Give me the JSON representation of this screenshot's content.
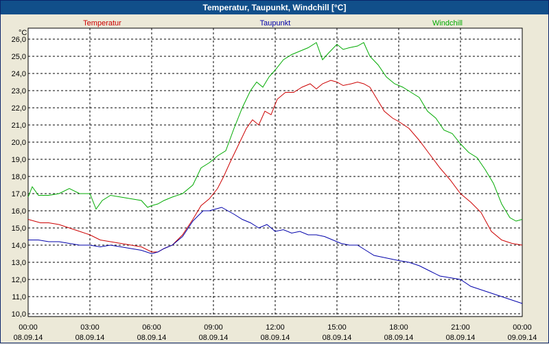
{
  "window": {
    "title": "Temperatur, Taupunkt, Windchill [°C]"
  },
  "chart_data": {
    "type": "line",
    "title": "Temperatur, Taupunkt, Windchill [°C]",
    "ylabel": "°C",
    "ylim": [
      10.0,
      26.5
    ],
    "xlim": [
      0,
      24
    ],
    "grid": true,
    "yticks": [
      "10,0",
      "11,0",
      "12,0",
      "13,0",
      "14,0",
      "15,0",
      "16,0",
      "17,0",
      "18,0",
      "19,0",
      "20,0",
      "21,0",
      "22,0",
      "23,0",
      "24,0",
      "25,0",
      "26,0"
    ],
    "xticks": [
      {
        "time": "00:00",
        "date": "08.09.14"
      },
      {
        "time": "03:00",
        "date": "08.09.14"
      },
      {
        "time": "06:00",
        "date": "08.09.14"
      },
      {
        "time": "09:00",
        "date": "08.09.14"
      },
      {
        "time": "12:00",
        "date": "08.09.14"
      },
      {
        "time": "15:00",
        "date": "08.09.14"
      },
      {
        "time": "18:00",
        "date": "08.09.14"
      },
      {
        "time": "21:00",
        "date": "08.09.14"
      },
      {
        "time": "00:00",
        "date": "09.09.14"
      }
    ],
    "series": [
      {
        "name": "Temperatur",
        "color": "#cc0000",
        "x": [
          0,
          0.3,
          0.6,
          1.0,
          1.5,
          2.0,
          2.5,
          3.0,
          3.5,
          4.0,
          4.5,
          5.0,
          5.5,
          6.0,
          6.3,
          6.6,
          7.0,
          7.5,
          8.0,
          8.4,
          8.8,
          9.2,
          9.5,
          9.8,
          10.2,
          10.6,
          10.9,
          11.2,
          11.5,
          11.8,
          12.1,
          12.5,
          12.9,
          13.3,
          13.7,
          14.0,
          14.3,
          14.7,
          15.0,
          15.3,
          15.7,
          16.0,
          16.3,
          16.6,
          16.9,
          17.3,
          17.7,
          18.0,
          18.5,
          19.0,
          19.5,
          20.0,
          20.5,
          21.0,
          21.5,
          22.0,
          22.5,
          23.0,
          23.5,
          24.0
        ],
        "values": [
          15.5,
          15.4,
          15.3,
          15.3,
          15.2,
          15.0,
          14.8,
          14.6,
          14.3,
          14.2,
          14.1,
          14.0,
          13.9,
          13.6,
          13.6,
          13.8,
          14.0,
          14.6,
          15.5,
          16.3,
          16.7,
          17.3,
          18.0,
          18.8,
          19.8,
          20.8,
          21.3,
          21.0,
          21.8,
          21.6,
          22.5,
          22.9,
          22.9,
          23.2,
          23.4,
          23.1,
          23.4,
          23.6,
          23.5,
          23.3,
          23.4,
          23.5,
          23.4,
          23.2,
          22.6,
          21.8,
          21.4,
          21.2,
          20.8,
          20.1,
          19.3,
          18.5,
          17.8,
          17.0,
          16.5,
          15.9,
          14.8,
          14.3,
          14.1,
          14.0
        ]
      },
      {
        "name": "Taupunkt",
        "color": "#0000aa",
        "x": [
          0,
          0.5,
          1.0,
          1.5,
          2.0,
          2.5,
          3.0,
          3.5,
          4.0,
          4.5,
          5.0,
          5.5,
          6.0,
          6.3,
          6.6,
          7.0,
          7.5,
          8.0,
          8.5,
          8.8,
          9.1,
          9.4,
          9.7,
          10.0,
          10.4,
          10.8,
          11.2,
          11.6,
          12.0,
          12.4,
          12.8,
          13.2,
          13.6,
          14.0,
          14.4,
          14.8,
          15.2,
          15.6,
          16.0,
          16.4,
          16.8,
          17.2,
          17.6,
          18.0,
          18.5,
          19.0,
          19.5,
          20.0,
          20.5,
          21.0,
          21.5,
          22.0,
          22.5,
          23.0,
          23.5,
          24.0
        ],
        "values": [
          14.3,
          14.3,
          14.2,
          14.2,
          14.1,
          14.0,
          14.0,
          13.9,
          14.0,
          13.9,
          13.8,
          13.7,
          13.5,
          13.6,
          13.8,
          14.0,
          14.5,
          15.4,
          16.0,
          16.0,
          16.1,
          16.2,
          16.0,
          15.8,
          15.5,
          15.3,
          15.0,
          15.2,
          14.8,
          14.9,
          14.7,
          14.8,
          14.6,
          14.6,
          14.5,
          14.3,
          14.1,
          14.0,
          14.0,
          13.7,
          13.4,
          13.3,
          13.2,
          13.1,
          13.0,
          12.8,
          12.5,
          12.2,
          12.1,
          12.0,
          11.6,
          11.4,
          11.2,
          11.0,
          10.8,
          10.6
        ]
      },
      {
        "name": "Windchill",
        "color": "#00aa00",
        "x": [
          0,
          0.2,
          0.5,
          1.0,
          1.5,
          2.0,
          2.5,
          3.0,
          3.3,
          3.6,
          4.0,
          4.5,
          5.0,
          5.5,
          5.8,
          6.0,
          6.3,
          6.6,
          7.0,
          7.5,
          8.0,
          8.4,
          8.8,
          9.2,
          9.6,
          10.0,
          10.4,
          10.8,
          11.1,
          11.4,
          11.7,
          12.0,
          12.4,
          12.8,
          13.2,
          13.6,
          14.0,
          14.3,
          14.6,
          15.0,
          15.3,
          15.6,
          16.0,
          16.3,
          16.6,
          17.0,
          17.4,
          17.8,
          18.2,
          18.6,
          19.0,
          19.4,
          19.8,
          20.2,
          20.6,
          21.0,
          21.4,
          21.8,
          22.2,
          22.6,
          23.0,
          23.4,
          23.7,
          24.0
        ],
        "values": [
          16.8,
          17.4,
          16.9,
          16.9,
          17.0,
          17.3,
          17.0,
          17.0,
          16.1,
          16.6,
          16.9,
          16.8,
          16.7,
          16.6,
          16.2,
          16.3,
          16.4,
          16.6,
          16.8,
          17.0,
          17.5,
          18.5,
          18.8,
          19.2,
          19.5,
          20.8,
          22.0,
          23.0,
          23.5,
          23.2,
          23.8,
          24.2,
          24.8,
          25.1,
          25.3,
          25.5,
          25.8,
          24.8,
          25.2,
          25.7,
          25.4,
          25.5,
          25.6,
          25.8,
          25.0,
          24.5,
          23.8,
          23.4,
          23.2,
          22.9,
          22.6,
          21.8,
          21.4,
          20.7,
          20.5,
          19.9,
          19.4,
          19.1,
          18.4,
          17.6,
          16.4,
          15.6,
          15.4,
          15.5
        ]
      }
    ]
  }
}
